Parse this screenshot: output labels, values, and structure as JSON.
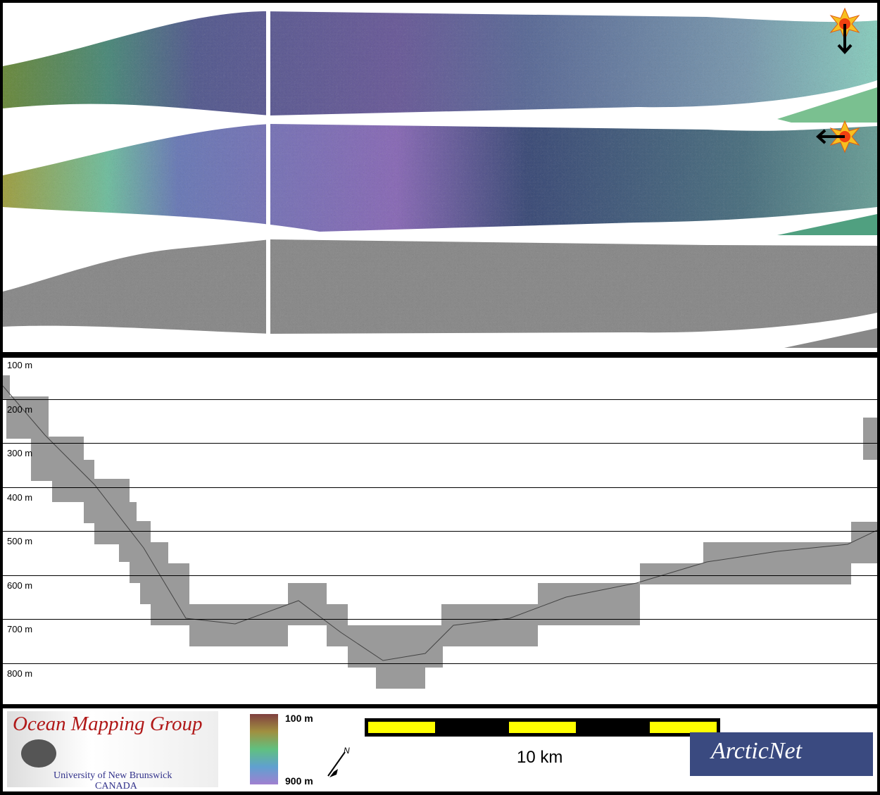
{
  "maps": {
    "sun_icon": "sun-illumination-icon",
    "illumination_directions": [
      "down",
      "left"
    ],
    "strips": [
      "bathymetry-sun-north",
      "bathymetry-sun-east",
      "backscatter"
    ]
  },
  "profile": {
    "depth_labels": [
      "100 m",
      "200 m",
      "300 m",
      "400 m",
      "500 m",
      "600 m",
      "700 m",
      "800 m"
    ]
  },
  "footer": {
    "logo_title": "Ocean Mapping Group",
    "logo_sub1": "University of New Brunswick",
    "logo_sub2": "CANADA",
    "colorbar_top": "100 m",
    "colorbar_bottom": "900 m",
    "north_label": "N",
    "scale_label": "10 km",
    "partner_logo": "ArcticNet",
    "scale_colors": [
      "#ffff00",
      "#000000"
    ]
  }
}
